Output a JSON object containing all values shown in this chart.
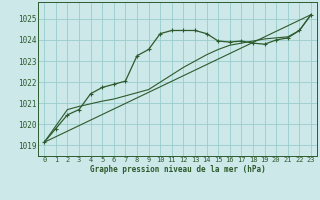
{
  "title": "Graphe pression niveau de la mer (hPa)",
  "bg_color": "#cce8e8",
  "grid_color": "#99cccc",
  "line_color": "#2d5a2d",
  "xlim": [
    -0.5,
    23.5
  ],
  "ylim": [
    1018.5,
    1025.8
  ],
  "yticks": [
    1019,
    1020,
    1021,
    1022,
    1023,
    1024,
    1025
  ],
  "xticks": [
    0,
    1,
    2,
    3,
    4,
    5,
    6,
    7,
    8,
    9,
    10,
    11,
    12,
    13,
    14,
    15,
    16,
    17,
    18,
    19,
    20,
    21,
    22,
    23
  ],
  "series1_x": [
    0,
    1,
    2,
    3,
    4,
    5,
    6,
    7,
    8,
    9,
    10,
    11,
    12,
    13,
    14,
    15,
    16,
    17,
    18,
    19,
    20,
    21,
    22,
    23
  ],
  "series1_y": [
    1019.15,
    1019.8,
    1020.45,
    1020.7,
    1021.45,
    1021.75,
    1021.9,
    1022.05,
    1023.25,
    1023.55,
    1024.3,
    1024.45,
    1024.45,
    1024.45,
    1024.3,
    1023.95,
    1023.9,
    1023.95,
    1023.85,
    1023.8,
    1024.0,
    1024.1,
    1024.45,
    1025.2
  ],
  "series2_x": [
    0,
    2,
    3,
    5,
    6,
    7,
    8,
    9,
    10,
    11,
    12,
    13,
    14,
    15,
    16,
    17,
    18,
    19,
    20,
    21,
    22,
    23
  ],
  "series2_y": [
    1019.15,
    1020.7,
    1020.85,
    1021.1,
    1021.2,
    1021.35,
    1021.5,
    1021.65,
    1022.0,
    1022.35,
    1022.7,
    1023.0,
    1023.3,
    1023.55,
    1023.75,
    1023.85,
    1023.95,
    1024.05,
    1024.1,
    1024.15,
    1024.45,
    1025.2
  ],
  "series3_x": [
    0,
    23
  ],
  "series3_y": [
    1019.15,
    1025.2
  ]
}
